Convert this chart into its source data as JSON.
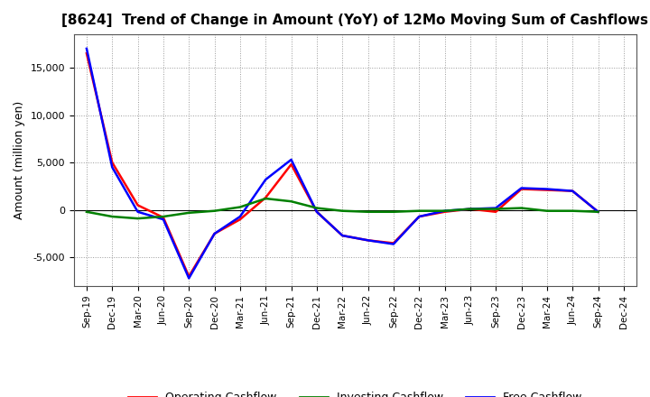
{
  "title": "[8624]  Trend of Change in Amount (YoY) of 12Mo Moving Sum of Cashflows",
  "ylabel": "Amount (million yen)",
  "x_labels": [
    "Sep-19",
    "Dec-19",
    "Mar-20",
    "Jun-20",
    "Sep-20",
    "Dec-20",
    "Mar-21",
    "Jun-21",
    "Sep-21",
    "Dec-21",
    "Mar-22",
    "Jun-22",
    "Sep-22",
    "Dec-22",
    "Mar-23",
    "Jun-23",
    "Sep-23",
    "Dec-23",
    "Mar-24",
    "Jun-24",
    "Sep-24",
    "Dec-24"
  ],
  "operating": [
    16500,
    5000,
    500,
    -800,
    -7000,
    -2500,
    -1000,
    1300,
    4800,
    -200,
    -2700,
    -3200,
    -3500,
    -700,
    -200,
    100,
    -200,
    2200,
    2100,
    2000,
    -200,
    null
  ],
  "investing": [
    -200,
    -700,
    -900,
    -700,
    -300,
    -100,
    300,
    1200,
    900,
    200,
    -100,
    -200,
    -200,
    -100,
    -100,
    100,
    100,
    200,
    -100,
    -100,
    -200,
    null
  ],
  "free": [
    17000,
    4500,
    -200,
    -1000,
    -7200,
    -2500,
    -700,
    3200,
    5300,
    -200,
    -2700,
    -3200,
    -3600,
    -700,
    -100,
    100,
    200,
    2300,
    2200,
    2000,
    -200,
    null
  ],
  "ylim": [
    -8000,
    18500
  ],
  "yticks": [
    -5000,
    0,
    5000,
    10000,
    15000
  ],
  "operating_color": "#ff0000",
  "investing_color": "#008000",
  "free_color": "#0000ff",
  "bg_color": "#ffffff",
  "grid_color": "#999999",
  "line_width": 1.8,
  "legend_labels": [
    "Operating Cashflow",
    "Investing Cashflow",
    "Free Cashflow"
  ]
}
